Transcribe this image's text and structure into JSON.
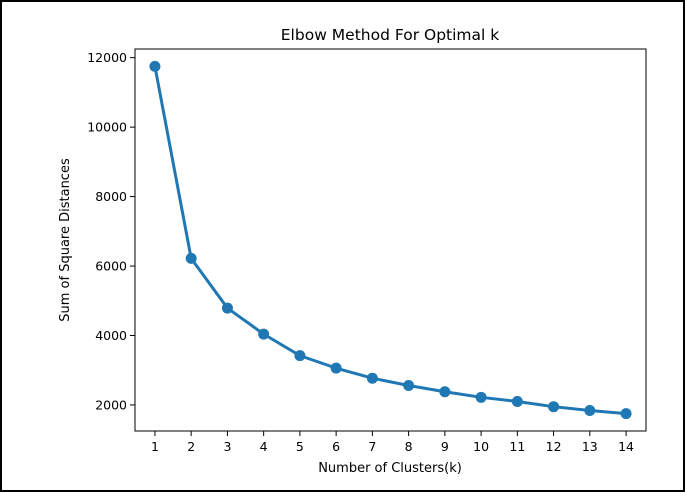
{
  "chart_data": {
    "type": "line",
    "title": "Elbow Method For Optimal k",
    "xlabel": "Number of Clusters(k)",
    "ylabel": "Sum of Square Distances",
    "x": [
      1,
      2,
      3,
      4,
      5,
      6,
      7,
      8,
      9,
      10,
      11,
      12,
      13,
      14
    ],
    "series": [
      {
        "values": [
          11750,
          6220,
          4790,
          4040,
          3420,
          3060,
          2770,
          2560,
          2380,
          2220,
          2100,
          1950,
          1840,
          1750
        ],
        "color": "#1f77b4",
        "marker": "circle"
      }
    ],
    "xlim": [
      0.45,
      14.55
    ],
    "ylim": [
      1250,
      12250
    ],
    "xticks": [
      1,
      2,
      3,
      4,
      5,
      6,
      7,
      8,
      9,
      10,
      11,
      12,
      13,
      14
    ],
    "yticks": [
      2000,
      4000,
      6000,
      8000,
      10000,
      12000
    ],
    "grid": false,
    "legend": false
  }
}
